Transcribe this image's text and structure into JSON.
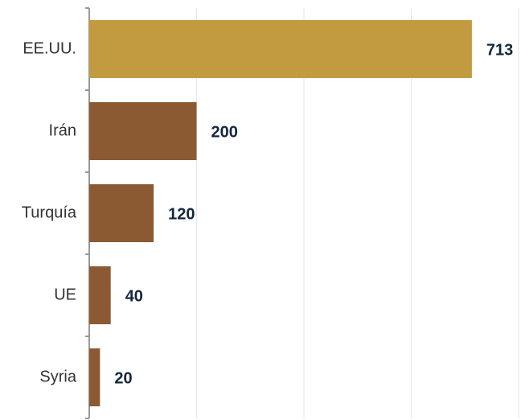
{
  "chart_data": {
    "type": "hbar",
    "categories": [
      "EE.UU.",
      "Irán",
      "Turquía",
      "UE",
      "Syria"
    ],
    "values": [
      713,
      200,
      120,
      40,
      20
    ],
    "colors": [
      "#c29b40",
      "#8b5a33",
      "#8b5a33",
      "#8b5a33",
      "#8b5a33"
    ],
    "xlim": [
      0,
      800
    ],
    "xticks": [
      0,
      200,
      400,
      600,
      800
    ],
    "grid": true
  }
}
